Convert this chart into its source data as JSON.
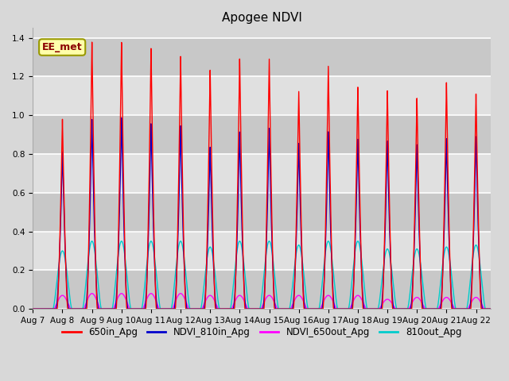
{
  "title": "Apogee NDVI",
  "annotation_text": "EE_met",
  "xlim": [
    0,
    15.5
  ],
  "ylim": [
    0,
    1.45
  ],
  "yticks": [
    0.0,
    0.2,
    0.4,
    0.6,
    0.8,
    1.0,
    1.2,
    1.4
  ],
  "xlabel_dates": [
    "Aug 7",
    "Aug 8",
    "Aug 9",
    "Aug 10",
    "Aug 11",
    "Aug 12",
    "Aug 13",
    "Aug 14",
    "Aug 15",
    "Aug 16",
    "Aug 17",
    "Aug 18",
    "Aug 19",
    "Aug 20",
    "Aug 21",
    "Aug 22"
  ],
  "colors": {
    "650in_Apg": "#ff0000",
    "NDVI_810in_Apg": "#0000cc",
    "NDVI_650out_Apg": "#ff00ff",
    "810out_Apg": "#00cccc"
  },
  "legend_labels": [
    "650in_Apg",
    "NDVI_810in_Apg",
    "NDVI_650out_Apg",
    "810out_Apg"
  ],
  "background_color": "#d8d8d8",
  "plot_bg": "#d8d8d8",
  "grid_color": "#ffffff",
  "peak_days": [
    1.0,
    2.0,
    3.0,
    4.0,
    5.0,
    6.0,
    7.0,
    8.0,
    9.0,
    10.0,
    11.0,
    12.0,
    13.0,
    14.0,
    15.0
  ],
  "red_peaks": [
    0.98,
    1.38,
    1.38,
    1.35,
    1.31,
    1.24,
    1.3,
    1.3,
    1.13,
    1.26,
    1.15,
    1.13,
    1.09,
    1.17,
    1.11
  ],
  "blue_peaks": [
    0.81,
    0.98,
    0.99,
    0.96,
    0.95,
    0.84,
    0.92,
    0.94,
    0.86,
    0.92,
    0.88,
    0.87,
    0.85,
    0.88,
    0.89
  ],
  "cyan_peaks": [
    0.3,
    0.35,
    0.35,
    0.35,
    0.35,
    0.32,
    0.35,
    0.35,
    0.33,
    0.35,
    0.35,
    0.31,
    0.31,
    0.32,
    0.33
  ],
  "magenta_peaks": [
    0.07,
    0.08,
    0.08,
    0.08,
    0.08,
    0.07,
    0.07,
    0.07,
    0.07,
    0.07,
    0.07,
    0.05,
    0.06,
    0.06,
    0.06
  ],
  "red_hw": 0.18,
  "blue_hw": 0.22,
  "cyan_hw": 0.32,
  "magenta_hw": 0.28,
  "title_fontsize": 11,
  "tick_fontsize": 7.5,
  "legend_fontsize": 8.5,
  "linewidth": 1.0
}
